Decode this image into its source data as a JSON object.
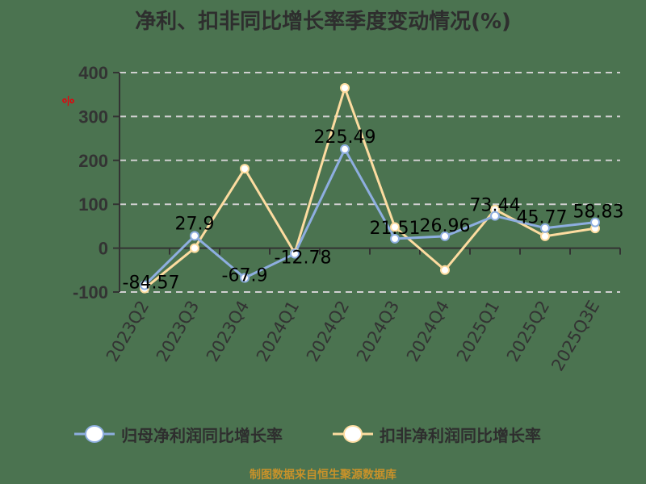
{
  "title": "净利、扣非同比增长率季度变动情况(%)",
  "unit_mark": "%",
  "footer": "制图数据来自恒生聚源数据库",
  "legend": [
    {
      "label": "归母净利润同比增长率",
      "color": "#8eaee0"
    },
    {
      "label": "扣非净利润同比增长率",
      "color": "#fddca0"
    }
  ],
  "chart_data": {
    "type": "line",
    "title": "净利、扣非同比增长率季度变动情况(%)",
    "xlabel": "",
    "ylabel": "%",
    "ylim": [
      -100,
      400
    ],
    "yticks": [
      400,
      300,
      200,
      100,
      0,
      -100
    ],
    "grid": "horizontal dashed",
    "legend_position": "bottom",
    "categories": [
      "2023Q2",
      "2023Q3",
      "2023Q4",
      "2024Q1",
      "2024Q2",
      "2024Q3",
      "2024Q4",
      "2025Q1",
      "2025Q2",
      "2025Q3E"
    ],
    "series": [
      {
        "name": "归母净利润同比增长率",
        "color": "#8eaee0",
        "values": [
          -84.57,
          27.9,
          -67.9,
          -12.78,
          225.49,
          21.51,
          26.96,
          73.44,
          45.77,
          58.83
        ],
        "labels": [
          "-84.57",
          "27.9",
          "-67.9",
          "-12.78",
          "225.49",
          "21.51",
          "26.96",
          "73.44",
          "45.77",
          "58.83"
        ]
      },
      {
        "name": "扣非净利润同比增长率",
        "color": "#fddca0",
        "values": [
          -92,
          0,
          181,
          -11,
          365,
          48,
          -50,
          88,
          27,
          45
        ]
      }
    ]
  }
}
